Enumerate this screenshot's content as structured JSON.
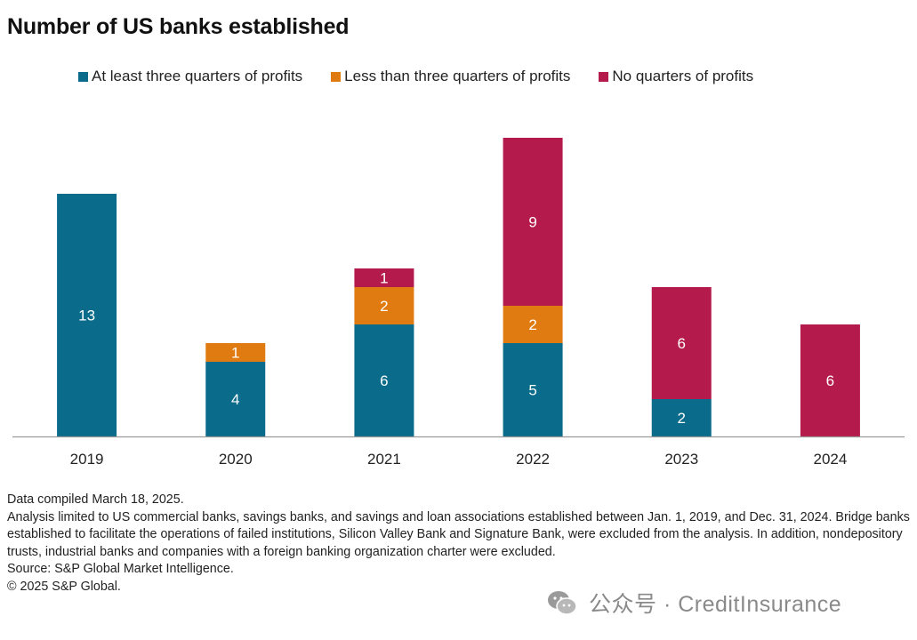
{
  "title": "Number of US banks established",
  "legend": [
    {
      "label": "At least three quarters of profits",
      "color": "#0a6b8a"
    },
    {
      "label": "Less than three quarters of profits",
      "color": "#e07b12"
    },
    {
      "label": "No quarters of profits",
      "color": "#b51a4c"
    }
  ],
  "chart_data": {
    "type": "bar",
    "stacked": true,
    "title": "Number of US banks established",
    "categories": [
      "2019",
      "2020",
      "2021",
      "2022",
      "2023",
      "2024"
    ],
    "series": [
      {
        "name": "At least three quarters of profits",
        "color": "#0a6b8a",
        "values": [
          13,
          4,
          6,
          5,
          2,
          0
        ]
      },
      {
        "name": "Less than three quarters of profits",
        "color": "#e07b12",
        "values": [
          0,
          1,
          2,
          2,
          0,
          0
        ]
      },
      {
        "name": "No quarters of profits",
        "color": "#b51a4c",
        "values": [
          0,
          0,
          1,
          9,
          6,
          6
        ]
      }
    ],
    "ylim": [
      0,
      16
    ],
    "grid": false,
    "legend_position": "top",
    "xlabel": "",
    "ylabel": ""
  },
  "notes": {
    "compiled": "Data compiled March 18, 2025.",
    "analysis": "Analysis limited to US commercial banks, savings banks, and savings and loan associations established between Jan. 1, 2019, and Dec. 31, 2024. Bridge banks established to facilitate the operations of failed institutions, Silicon Valley Bank and Signature Bank, were excluded from the analysis. In addition, nondepository trusts, industrial banks and companies with a foreign banking organization charter were excluded.",
    "source": "Source: S&P Global Market Intelligence.",
    "copyright": "© 2025 S&P Global."
  },
  "watermark": {
    "text": "公众号 · CreditInsurance",
    "icon": "wechat-icon"
  }
}
